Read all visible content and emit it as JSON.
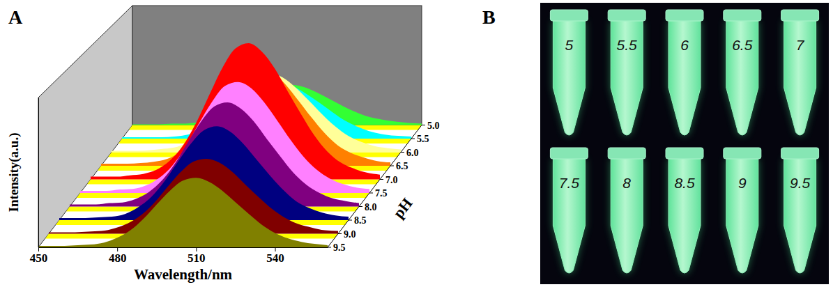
{
  "chart_data": {
    "type": "waterfall",
    "panel_label": "A",
    "x_label": "Wavelength/nm",
    "y_label": "Intensity(a.u.)",
    "z_label": "pH",
    "x": [
      450,
      455,
      460,
      465,
      470,
      475,
      480,
      485,
      490,
      495,
      500,
      505,
      510,
      515,
      520,
      525,
      530,
      535,
      540,
      545,
      550,
      555,
      560
    ],
    "xlim": [
      450,
      560
    ],
    "xticks": [
      450,
      480,
      510,
      540
    ],
    "ylim": [
      0,
      220
    ],
    "yticks": [],
    "zlim": [
      5,
      9.5
    ],
    "zticks": [
      {
        "value": 5,
        "label": "5.0"
      },
      5.5,
      {
        "value": 6,
        "label": "6.0"
      },
      6.5,
      {
        "value": 7,
        "label": "7.0"
      },
      7.5,
      {
        "value": 8,
        "label": "8.0"
      },
      8.5,
      {
        "value": 9,
        "label": "9.0"
      },
      9.5
    ],
    "series": [
      {
        "z": 5,
        "color": "#33ff33",
        "values": [
          1,
          1,
          1,
          2,
          2,
          4,
          8,
          15,
          24,
          37,
          48,
          57,
          59,
          56,
          48,
          38,
          28,
          19,
          12,
          8,
          5,
          3,
          2
        ]
      },
      {
        "z": 5.5,
        "color": "#00ffff",
        "values": [
          2,
          2,
          2,
          2,
          3,
          6,
          11,
          20,
          34,
          50,
          66,
          78,
          82,
          77,
          66,
          53,
          39,
          26,
          17,
          10,
          6,
          4,
          3
        ]
      },
      {
        "z": 6,
        "color": "#ffff99",
        "values": [
          2,
          2,
          2,
          3,
          5,
          8,
          16,
          29,
          48,
          72,
          95,
          113,
          117,
          110,
          95,
          76,
          56,
          38,
          24,
          15,
          9,
          6,
          4
        ]
      },
      {
        "z": 6.5,
        "color": "#ff8000",
        "values": [
          3,
          3,
          3,
          4,
          6,
          10,
          20,
          36,
          61,
          91,
          120,
          142,
          148,
          139,
          120,
          96,
          71,
          48,
          30,
          19,
          12,
          7,
          5
        ]
      },
      {
        "z": 7,
        "color": "#ff0000",
        "values": [
          4,
          4,
          4,
          6,
          8,
          14,
          27,
          49,
          82,
          123,
          163,
          192,
          200,
          188,
          163,
          129,
          96,
          65,
          41,
          25,
          16,
          10,
          7
        ]
      },
      {
        "z": 7.5,
        "color": "#ff80ff",
        "values": [
          3,
          3,
          3,
          5,
          6,
          11,
          22,
          40,
          67,
          101,
          133,
          157,
          163,
          154,
          133,
          106,
          78,
          53,
          34,
          21,
          13,
          8,
          6
        ]
      },
      {
        "z": 8,
        "color": "#800080",
        "values": [
          3,
          3,
          3,
          5,
          6,
          11,
          21,
          38,
          63,
          95,
          125,
          147,
          153,
          144,
          125,
          99,
          74,
          50,
          32,
          20,
          12,
          8,
          5
        ]
      },
      {
        "z": 8.5,
        "color": "#000080",
        "values": [
          3,
          3,
          3,
          4,
          5,
          9,
          19,
          34,
          57,
          85,
          112,
          132,
          138,
          130,
          112,
          89,
          66,
          45,
          28,
          18,
          11,
          7,
          5
        ]
      },
      {
        "z": 9,
        "color": "#800000",
        "values": [
          2,
          2,
          2,
          3,
          4,
          8,
          15,
          27,
          45,
          68,
          90,
          106,
          110,
          104,
          90,
          71,
          53,
          36,
          23,
          14,
          9,
          5,
          4
        ]
      },
      {
        "z": 9.5,
        "color": "#808000",
        "values": [
          2,
          2,
          2,
          3,
          4,
          7,
          14,
          25,
          42,
          63,
          83,
          98,
          102,
          96,
          83,
          66,
          49,
          33,
          21,
          13,
          8,
          5,
          3
        ]
      }
    ]
  },
  "photo": {
    "panel_label": "B",
    "tubes": [
      "5",
      "5.5",
      "6",
      "6.5",
      "7",
      "7.5",
      "8",
      "8.5",
      "9",
      "9.5"
    ]
  }
}
